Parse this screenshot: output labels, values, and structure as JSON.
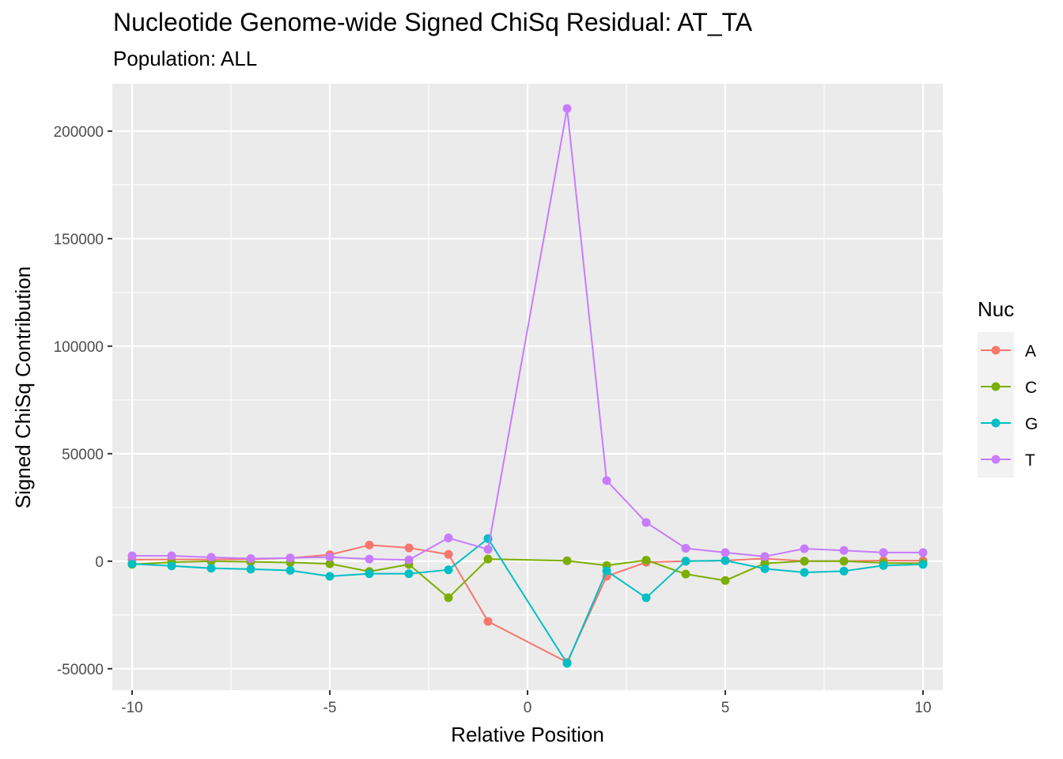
{
  "chart_data": {
    "type": "line",
    "title": "Nucleotide Genome-wide Signed ChiSq Residual: AT_TA",
    "subtitle": "Population: ALL",
    "xlabel": "Relative Position",
    "ylabel": "Signed ChiSq Contribution",
    "xlim": [
      -10.5,
      10.5
    ],
    "ylim": [
      -60000,
      222000
    ],
    "x_ticks": [
      -10,
      -5,
      0,
      5,
      10
    ],
    "y_ticks": [
      -50000,
      0,
      50000,
      100000,
      150000,
      200000
    ],
    "grid": true,
    "legend": {
      "title": "Nuc",
      "position": "right"
    },
    "x": [
      -10,
      -9,
      -8,
      -7,
      -6,
      -5,
      -4,
      -3,
      -2,
      -1,
      1,
      2,
      3,
      4,
      5,
      6,
      7,
      8,
      9,
      10
    ],
    "series": [
      {
        "name": "A",
        "color": "#F8766D",
        "values": [
          700,
          800,
          800,
          900,
          1500,
          3000,
          7500,
          6200,
          3200,
          -28000,
          -47000,
          -7000,
          -500,
          0,
          300,
          1200,
          0,
          0,
          300,
          200
        ]
      },
      {
        "name": "C",
        "color": "#7CAE00",
        "values": [
          -1500,
          -500,
          0,
          -300,
          -600,
          -1200,
          -4800,
          -1500,
          -17000,
          1000,
          200,
          -2000,
          500,
          -6000,
          -9000,
          -1000,
          0,
          0,
          -800,
          -1000
        ]
      },
      {
        "name": "G",
        "color": "#00BFC4",
        "values": [
          -1200,
          -2200,
          -3300,
          -3700,
          -4300,
          -7000,
          -5800,
          -5800,
          -4000,
          10500,
          -47500,
          -4500,
          -17000,
          0,
          300,
          -3500,
          -5200,
          -4600,
          -2000,
          -1500
        ]
      },
      {
        "name": "T",
        "color": "#C77CFF",
        "values": [
          2500,
          2500,
          1800,
          1200,
          1500,
          1900,
          1000,
          600,
          10800,
          5500,
          210500,
          37500,
          18000,
          6000,
          4000,
          2200,
          5800,
          5000,
          4000,
          4000
        ]
      }
    ]
  }
}
